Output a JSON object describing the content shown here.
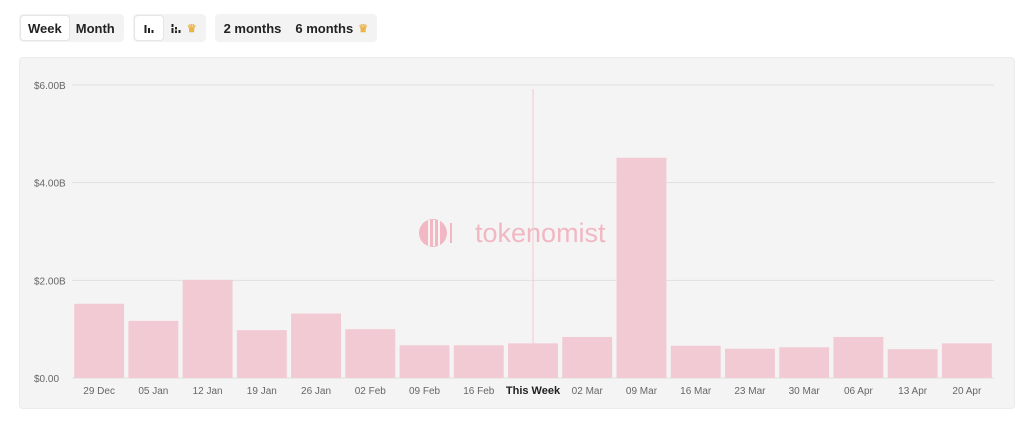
{
  "toolbar": {
    "period": {
      "week_label": "Week",
      "month_label": "Month",
      "selected": "Week"
    },
    "chart_mode": {
      "bar_icon": "bar-chart-icon",
      "stacked_icon": "stacked-bar-chart-icon",
      "stacked_premium_icon": "crown-icon",
      "selected": "bar"
    },
    "range": {
      "two_months_label": "2 months",
      "six_months_label": "6 months",
      "six_months_premium_icon": "crown-icon"
    }
  },
  "watermark": {
    "text": "tokenomist"
  },
  "colors": {
    "bar": "#f2cad3",
    "watermark": "#f1b7c2",
    "background": "#f4f4f4",
    "grid": "#e0e0e0",
    "current_week_line": "#f2c9d2"
  },
  "chart_data": {
    "type": "bar",
    "categories": [
      "29 Dec",
      "05 Jan",
      "12 Jan",
      "19 Jan",
      "26 Jan",
      "02 Feb",
      "09 Feb",
      "16 Feb",
      "This Week",
      "02 Mar",
      "09 Mar",
      "16 Mar",
      "23 Mar",
      "30 Mar",
      "06 Apr",
      "13 Apr",
      "20 Apr"
    ],
    "values": [
      1.52,
      1.17,
      2.01,
      0.98,
      1.32,
      1.0,
      0.67,
      0.67,
      0.71,
      0.84,
      4.51,
      0.66,
      0.6,
      0.63,
      0.84,
      0.59,
      0.71
    ],
    "unit": "B",
    "ylim": [
      0,
      6
    ],
    "yticks": [
      "$0.00",
      "$2.00B",
      "$4.00B",
      "$6.00B"
    ],
    "ytick_values": [
      0,
      2,
      4,
      6
    ],
    "highlight_category": "This Week",
    "grid": true,
    "title": "",
    "xlabel": "",
    "ylabel": ""
  }
}
